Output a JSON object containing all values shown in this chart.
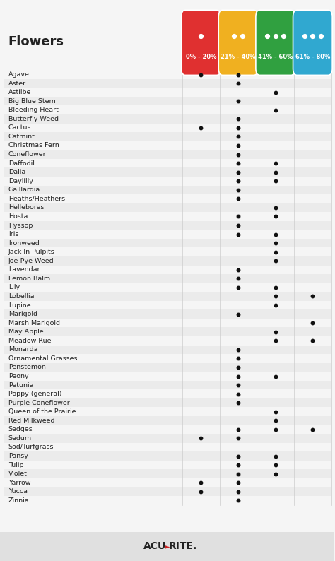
{
  "title": "Flowers",
  "columns": [
    "0% - 20%",
    "21% - 40%",
    "41% - 60%",
    "61% - 80%"
  ],
  "col_colors": [
    "#e03030",
    "#f0b020",
    "#30a040",
    "#30a8d0"
  ],
  "col_drops": [
    1,
    2,
    3,
    3
  ],
  "background": "#f5f5f5",
  "row_bg_odd": "#ebebeb",
  "row_bg_even": "#f5f5f5",
  "flowers": [
    {
      "name": "Agave",
      "dots": [
        1,
        1,
        0,
        0
      ]
    },
    {
      "name": "Aster",
      "dots": [
        0,
        1,
        0,
        0
      ]
    },
    {
      "name": "Astilbe",
      "dots": [
        0,
        0,
        1,
        0
      ]
    },
    {
      "name": "Big Blue Stem",
      "dots": [
        0,
        1,
        0,
        0
      ]
    },
    {
      "name": "Bleeding Heart",
      "dots": [
        0,
        0,
        1,
        0
      ]
    },
    {
      "name": "Butterfly Weed",
      "dots": [
        0,
        1,
        0,
        0
      ]
    },
    {
      "name": "Cactus",
      "dots": [
        1,
        1,
        0,
        0
      ]
    },
    {
      "name": "Catmint",
      "dots": [
        0,
        1,
        0,
        0
      ]
    },
    {
      "name": "Christmas Fern",
      "dots": [
        0,
        1,
        0,
        0
      ]
    },
    {
      "name": "Coneflower",
      "dots": [
        0,
        1,
        0,
        0
      ]
    },
    {
      "name": "Daffodil",
      "dots": [
        0,
        1,
        1,
        0
      ]
    },
    {
      "name": "Dalia",
      "dots": [
        0,
        1,
        1,
        0
      ]
    },
    {
      "name": "Daylilly",
      "dots": [
        0,
        1,
        1,
        0
      ]
    },
    {
      "name": "Gaillardia",
      "dots": [
        0,
        1,
        0,
        0
      ]
    },
    {
      "name": "Heaths/Heathers",
      "dots": [
        0,
        1,
        0,
        0
      ]
    },
    {
      "name": "Hellebores",
      "dots": [
        0,
        0,
        1,
        0
      ]
    },
    {
      "name": "Hosta",
      "dots": [
        0,
        1,
        1,
        0
      ]
    },
    {
      "name": "Hyssop",
      "dots": [
        0,
        1,
        0,
        0
      ]
    },
    {
      "name": "Iris",
      "dots": [
        0,
        1,
        1,
        0
      ]
    },
    {
      "name": "Ironweed",
      "dots": [
        0,
        0,
        1,
        0
      ]
    },
    {
      "name": "Jack In Pulpits",
      "dots": [
        0,
        0,
        1,
        0
      ]
    },
    {
      "name": "Joe-Pye Weed",
      "dots": [
        0,
        0,
        1,
        0
      ]
    },
    {
      "name": "Lavendar",
      "dots": [
        0,
        1,
        0,
        0
      ]
    },
    {
      "name": "Lemon Balm",
      "dots": [
        0,
        1,
        0,
        0
      ]
    },
    {
      "name": "Lily",
      "dots": [
        0,
        1,
        1,
        0
      ]
    },
    {
      "name": "Lobellia",
      "dots": [
        0,
        0,
        1,
        1
      ]
    },
    {
      "name": "Lupine",
      "dots": [
        0,
        0,
        1,
        0
      ]
    },
    {
      "name": "Marigold",
      "dots": [
        0,
        1,
        0,
        0
      ]
    },
    {
      "name": "Marsh Marigold",
      "dots": [
        0,
        0,
        0,
        1
      ]
    },
    {
      "name": "May Apple",
      "dots": [
        0,
        0,
        1,
        0
      ]
    },
    {
      "name": "Meadow Rue",
      "dots": [
        0,
        0,
        1,
        1
      ]
    },
    {
      "name": "Monarda",
      "dots": [
        0,
        1,
        0,
        0
      ]
    },
    {
      "name": "Ornamental Grasses",
      "dots": [
        0,
        1,
        0,
        0
      ]
    },
    {
      "name": "Penstemon",
      "dots": [
        0,
        1,
        0,
        0
      ]
    },
    {
      "name": "Peony",
      "dots": [
        0,
        1,
        1,
        0
      ]
    },
    {
      "name": "Petunia",
      "dots": [
        0,
        1,
        0,
        0
      ]
    },
    {
      "name": "Poppy (general)",
      "dots": [
        0,
        1,
        0,
        0
      ]
    },
    {
      "name": "Purple Coneflower",
      "dots": [
        0,
        1,
        0,
        0
      ]
    },
    {
      "name": "Queen of the Prairie",
      "dots": [
        0,
        0,
        1,
        0
      ]
    },
    {
      "name": "Red Milkweed",
      "dots": [
        0,
        0,
        1,
        0
      ]
    },
    {
      "name": "Sedges",
      "dots": [
        0,
        1,
        1,
        1
      ]
    },
    {
      "name": "Sedum",
      "dots": [
        1,
        1,
        0,
        0
      ]
    },
    {
      "name": "Sod/Turfgrass",
      "dots": [
        0,
        0,
        0,
        0
      ]
    },
    {
      "name": "Pansy",
      "dots": [
        0,
        1,
        1,
        0
      ]
    },
    {
      "name": "Tulip",
      "dots": [
        0,
        1,
        1,
        0
      ]
    },
    {
      "name": "Violet",
      "dots": [
        0,
        1,
        1,
        0
      ]
    },
    {
      "name": "Yarrow",
      "dots": [
        1,
        1,
        0,
        0
      ]
    },
    {
      "name": "Yucca",
      "dots": [
        1,
        1,
        0,
        0
      ]
    },
    {
      "name": "Zinnia",
      "dots": [
        0,
        1,
        0,
        0
      ]
    }
  ],
  "dot_color": "#111111",
  "dot_size": 7,
  "font_family": "DejaVu Sans",
  "footer_left": "ACU",
  "footer_arrow": ">",
  "footer_right": "RITE.",
  "footer_arrow_color": "#cc2222"
}
